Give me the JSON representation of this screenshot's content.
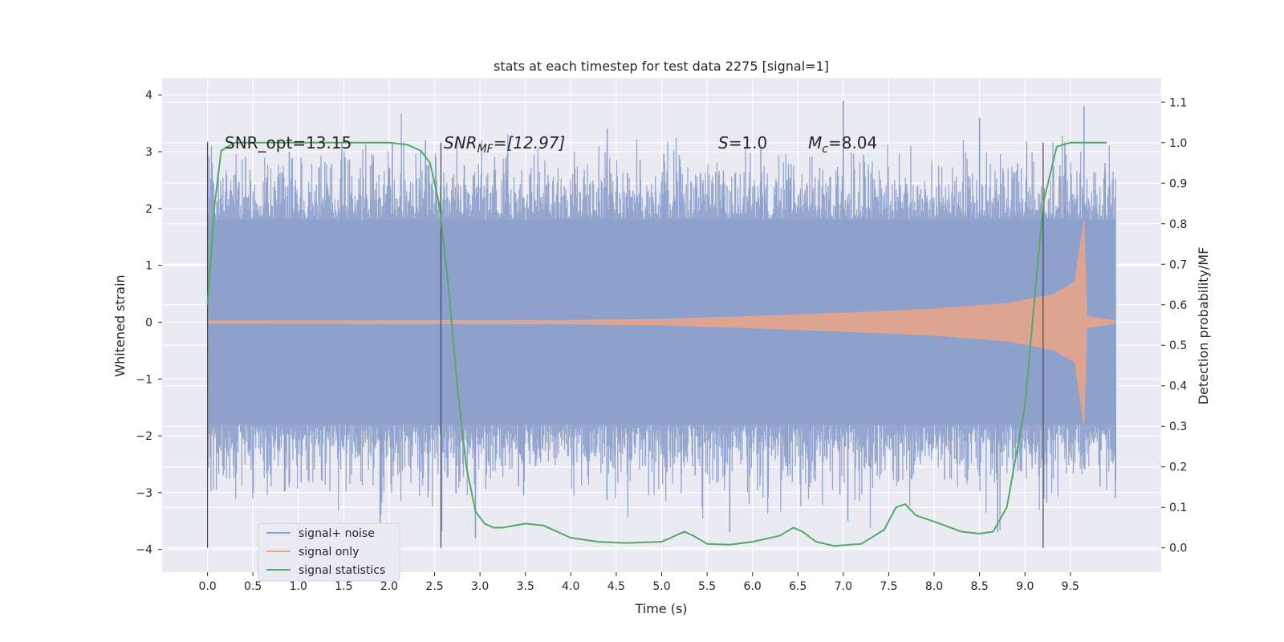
{
  "chart_data": {
    "type": "line",
    "title": "stats at each timestep for test data 2275 [signal=1]",
    "xlabel": "Time (s)",
    "ylabel": "Whitened strain",
    "y2label": "Detection probability/MF",
    "xlim": [
      -0.5,
      10.5
    ],
    "ylim": [
      -4.4,
      4.3
    ],
    "y2lim": [
      -0.06,
      1.16
    ],
    "x_ticks": [
      0.0,
      0.5,
      1.0,
      1.5,
      2.0,
      2.5,
      3.0,
      3.5,
      4.0,
      4.5,
      5.0,
      5.5,
      6.0,
      6.5,
      7.0,
      7.5,
      8.0,
      8.5,
      9.0,
      9.5
    ],
    "x_tick_labels": [
      "0.0",
      "0.5",
      "1.0",
      "1.5",
      "2.0",
      "2.5",
      "3.0",
      "3.5",
      "4.0",
      "4.5",
      "5.0",
      "5.5",
      "6.0",
      "6.5",
      "7.0",
      "7.5",
      "8.0",
      "8.5",
      "9.0",
      "9.5"
    ],
    "y_ticks": [
      -4,
      -3,
      -2,
      -1,
      0,
      1,
      2,
      3,
      4
    ],
    "y_tick_labels": [
      "−4",
      "−3",
      "−2",
      "−1",
      "0",
      "1",
      "2",
      "3",
      "4"
    ],
    "y2_ticks": [
      0.0,
      0.1,
      0.2,
      0.3,
      0.4,
      0.5,
      0.6,
      0.7,
      0.8,
      0.9,
      1.0,
      1.1
    ],
    "y2_tick_labels": [
      "0.0",
      "0.1",
      "0.2",
      "0.3",
      "0.4",
      "0.5",
      "0.6",
      "0.7",
      "0.8",
      "0.9",
      "1.0",
      "1.1"
    ],
    "grid": true,
    "legend_position": "lower-left",
    "annotations": {
      "snr_opt": "SNR_opt=13.15",
      "snr_mf_prefix": "SNR",
      "snr_mf_sub": "MF",
      "snr_mf_value": "=[12.97]",
      "s_label": "S",
      "s_value": "=1.0",
      "mc_label": "M",
      "mc_sub": "c",
      "mc_value": "=8.04"
    },
    "vertical_markers": [
      0.0,
      2.57,
      9.2
    ],
    "series": [
      {
        "name": "signal+ noise",
        "color": "#8da0cb",
        "kind": "noise",
        "x_range": [
          0.0,
          10.0
        ],
        "typical_low": -1.8,
        "typical_high": 1.8,
        "extremes": [
          {
            "x": 0.05,
            "y": 2.8
          },
          {
            "x": 0.9,
            "y": 3.0
          },
          {
            "x": 1.9,
            "y": -4.0
          },
          {
            "x": 2.4,
            "y": 3.2
          },
          {
            "x": 2.95,
            "y": -3.8
          },
          {
            "x": 4.4,
            "y": 3.4
          },
          {
            "x": 5.75,
            "y": -3.7
          },
          {
            "x": 7.0,
            "y": 3.9
          },
          {
            "x": 7.05,
            "y": -3.5
          },
          {
            "x": 8.5,
            "y": 3.6
          },
          {
            "x": 8.7,
            "y": -3.7
          },
          {
            "x": 9.65,
            "y": 3.8
          }
        ]
      },
      {
        "name": "signal only",
        "color": "#e5a58b",
        "kind": "chirp",
        "x_range": [
          0.0,
          10.0
        ],
        "envelope": [
          {
            "x": 0.0,
            "y": 0.02
          },
          {
            "x": 4.0,
            "y": 0.03
          },
          {
            "x": 5.0,
            "y": 0.05
          },
          {
            "x": 6.0,
            "y": 0.1
          },
          {
            "x": 7.0,
            "y": 0.16
          },
          {
            "x": 8.0,
            "y": 0.23
          },
          {
            "x": 8.8,
            "y": 0.33
          },
          {
            "x": 9.3,
            "y": 0.48
          },
          {
            "x": 9.55,
            "y": 0.7
          },
          {
            "x": 9.65,
            "y": 1.8
          },
          {
            "x": 9.68,
            "y": 0.1
          },
          {
            "x": 10.0,
            "y": 0.02
          }
        ]
      },
      {
        "name": "signal statistics",
        "color": "#55a868",
        "axis": "right",
        "x": [
          0.0,
          0.08,
          0.15,
          0.3,
          0.5,
          1.0,
          1.5,
          2.0,
          2.2,
          2.35,
          2.45,
          2.55,
          2.65,
          2.75,
          2.85,
          2.95,
          3.05,
          3.15,
          3.25,
          3.5,
          3.7,
          4.0,
          4.3,
          4.6,
          5.0,
          5.15,
          5.25,
          5.35,
          5.5,
          5.75,
          6.0,
          6.3,
          6.45,
          6.55,
          6.7,
          6.9,
          7.2,
          7.45,
          7.58,
          7.68,
          7.8,
          8.0,
          8.3,
          8.5,
          8.65,
          8.8,
          9.0,
          9.1,
          9.2,
          9.35,
          9.5,
          9.7,
          9.9
        ],
        "y": [
          0.6,
          0.85,
          0.98,
          1.0,
          1.0,
          1.0,
          1.0,
          1.0,
          0.995,
          0.98,
          0.95,
          0.85,
          0.65,
          0.4,
          0.2,
          0.09,
          0.06,
          0.05,
          0.05,
          0.06,
          0.055,
          0.025,
          0.015,
          0.012,
          0.015,
          0.03,
          0.04,
          0.03,
          0.01,
          0.008,
          0.015,
          0.03,
          0.05,
          0.04,
          0.015,
          0.005,
          0.01,
          0.045,
          0.1,
          0.108,
          0.08,
          0.065,
          0.04,
          0.035,
          0.04,
          0.1,
          0.35,
          0.6,
          0.85,
          0.99,
          1.0,
          1.0,
          1.0
        ]
      }
    ]
  }
}
